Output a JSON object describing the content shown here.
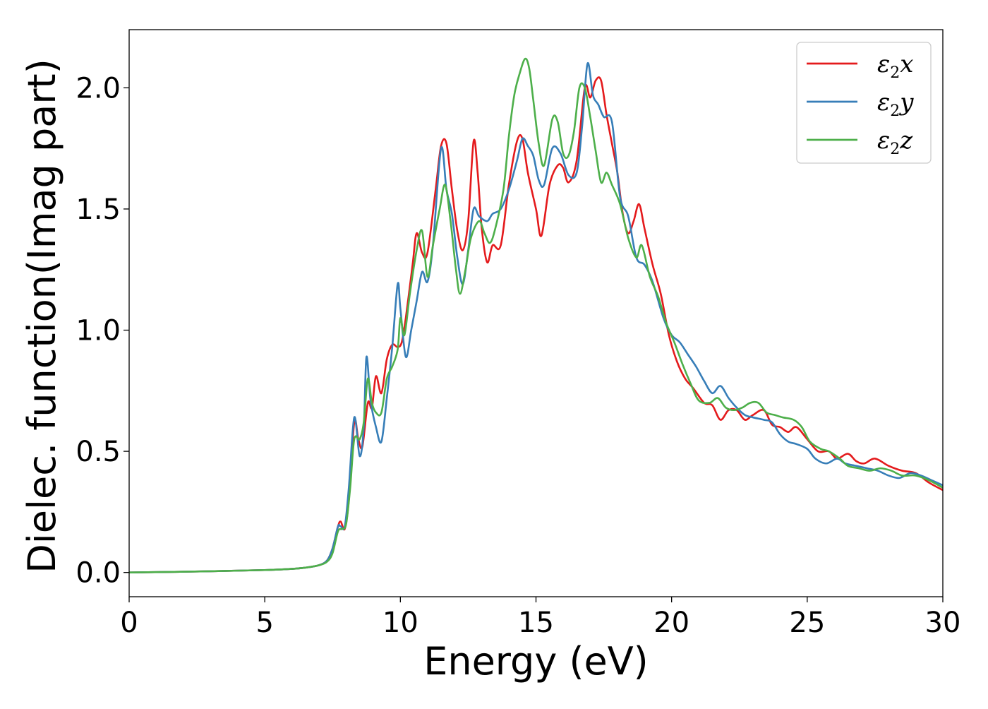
{
  "chart_data": {
    "type": "line",
    "xlabel": "Energy (eV)",
    "ylabel": "Dielec. function(Imag part)",
    "xlim": [
      0,
      30
    ],
    "ylim": [
      -0.1,
      2.24
    ],
    "xticks": [
      0,
      5,
      10,
      15,
      20,
      25,
      30
    ],
    "xtick_labels": [
      "0",
      "5",
      "10",
      "15",
      "20",
      "25",
      "30"
    ],
    "yticks": [
      0.0,
      0.5,
      1.0,
      1.5,
      2.0
    ],
    "ytick_labels": [
      "0.0",
      "0.5",
      "1.0",
      "1.5",
      "2.0"
    ],
    "grid": false,
    "legend_position": "top-right",
    "series": [
      {
        "name": "ε2x",
        "legend_symbol": "ε",
        "legend_sub": "2",
        "legend_var": "x",
        "color": "#e41a1c",
        "points": [
          [
            0,
            0.0
          ],
          [
            3,
            0.005
          ],
          [
            5,
            0.01
          ],
          [
            6,
            0.015
          ],
          [
            6.5,
            0.02
          ],
          [
            7,
            0.03
          ],
          [
            7.3,
            0.05
          ],
          [
            7.5,
            0.1
          ],
          [
            7.7,
            0.19
          ],
          [
            7.8,
            0.21
          ],
          [
            7.95,
            0.18
          ],
          [
            8.1,
            0.3
          ],
          [
            8.3,
            0.62
          ],
          [
            8.45,
            0.55
          ],
          [
            8.6,
            0.52
          ],
          [
            8.8,
            0.7
          ],
          [
            8.95,
            0.68
          ],
          [
            9.1,
            0.81
          ],
          [
            9.3,
            0.74
          ],
          [
            9.5,
            0.88
          ],
          [
            9.7,
            0.94
          ],
          [
            9.9,
            0.93
          ],
          [
            10.05,
            0.95
          ],
          [
            10.2,
            1.05
          ],
          [
            10.45,
            1.27
          ],
          [
            10.6,
            1.4
          ],
          [
            10.8,
            1.32
          ],
          [
            11.0,
            1.32
          ],
          [
            11.3,
            1.58
          ],
          [
            11.5,
            1.76
          ],
          [
            11.7,
            1.77
          ],
          [
            11.9,
            1.58
          ],
          [
            12.1,
            1.41
          ],
          [
            12.3,
            1.33
          ],
          [
            12.5,
            1.45
          ],
          [
            12.7,
            1.78
          ],
          [
            12.85,
            1.65
          ],
          [
            13.0,
            1.42
          ],
          [
            13.2,
            1.28
          ],
          [
            13.4,
            1.35
          ],
          [
            13.7,
            1.35
          ],
          [
            14.0,
            1.6
          ],
          [
            14.3,
            1.78
          ],
          [
            14.5,
            1.79
          ],
          [
            14.7,
            1.65
          ],
          [
            15.0,
            1.5
          ],
          [
            15.2,
            1.39
          ],
          [
            15.5,
            1.6
          ],
          [
            15.8,
            1.68
          ],
          [
            16.0,
            1.67
          ],
          [
            16.2,
            1.61
          ],
          [
            16.5,
            1.7
          ],
          [
            16.8,
            2.0
          ],
          [
            17.0,
            1.96
          ],
          [
            17.2,
            2.03
          ],
          [
            17.4,
            2.03
          ],
          [
            17.6,
            1.89
          ],
          [
            17.8,
            1.77
          ],
          [
            18.0,
            1.65
          ],
          [
            18.2,
            1.48
          ],
          [
            18.4,
            1.4
          ],
          [
            18.6,
            1.45
          ],
          [
            18.8,
            1.52
          ],
          [
            19.0,
            1.42
          ],
          [
            19.3,
            1.27
          ],
          [
            19.6,
            1.15
          ],
          [
            19.9,
            0.98
          ],
          [
            20.2,
            0.87
          ],
          [
            20.5,
            0.8
          ],
          [
            20.8,
            0.76
          ],
          [
            21.2,
            0.7
          ],
          [
            21.5,
            0.69
          ],
          [
            21.8,
            0.63
          ],
          [
            22.1,
            0.67
          ],
          [
            22.4,
            0.67
          ],
          [
            22.7,
            0.63
          ],
          [
            23.0,
            0.65
          ],
          [
            23.4,
            0.67
          ],
          [
            23.7,
            0.61
          ],
          [
            24.0,
            0.6
          ],
          [
            24.3,
            0.58
          ],
          [
            24.6,
            0.6
          ],
          [
            25.0,
            0.55
          ],
          [
            25.4,
            0.5
          ],
          [
            25.8,
            0.5
          ],
          [
            26.1,
            0.47
          ],
          [
            26.5,
            0.49
          ],
          [
            26.8,
            0.46
          ],
          [
            27.1,
            0.45
          ],
          [
            27.5,
            0.47
          ],
          [
            28.0,
            0.44
          ],
          [
            28.5,
            0.42
          ],
          [
            29.0,
            0.41
          ],
          [
            29.5,
            0.37
          ],
          [
            30.0,
            0.34
          ]
        ]
      },
      {
        "name": "ε2y",
        "legend_symbol": "ε",
        "legend_sub": "2",
        "legend_var": "y",
        "color": "#377eb8",
        "points": [
          [
            0,
            0.0
          ],
          [
            3,
            0.005
          ],
          [
            5,
            0.01
          ],
          [
            6,
            0.015
          ],
          [
            6.5,
            0.02
          ],
          [
            7,
            0.03
          ],
          [
            7.3,
            0.05
          ],
          [
            7.5,
            0.1
          ],
          [
            7.7,
            0.19
          ],
          [
            7.8,
            0.19
          ],
          [
            7.95,
            0.19
          ],
          [
            8.1,
            0.35
          ],
          [
            8.3,
            0.64
          ],
          [
            8.5,
            0.48
          ],
          [
            8.65,
            0.6
          ],
          [
            8.75,
            0.89
          ],
          [
            8.9,
            0.71
          ],
          [
            9.1,
            0.6
          ],
          [
            9.3,
            0.54
          ],
          [
            9.5,
            0.72
          ],
          [
            9.7,
            0.93
          ],
          [
            9.9,
            1.19
          ],
          [
            10.0,
            1.09
          ],
          [
            10.2,
            0.89
          ],
          [
            10.4,
            1.0
          ],
          [
            10.6,
            1.12
          ],
          [
            10.8,
            1.24
          ],
          [
            11.0,
            1.2
          ],
          [
            11.2,
            1.35
          ],
          [
            11.5,
            1.75
          ],
          [
            11.7,
            1.58
          ],
          [
            11.9,
            1.48
          ],
          [
            12.1,
            1.3
          ],
          [
            12.3,
            1.19
          ],
          [
            12.5,
            1.33
          ],
          [
            12.7,
            1.5
          ],
          [
            12.9,
            1.47
          ],
          [
            13.2,
            1.45
          ],
          [
            13.4,
            1.48
          ],
          [
            13.7,
            1.5
          ],
          [
            14.0,
            1.58
          ],
          [
            14.3,
            1.7
          ],
          [
            14.5,
            1.79
          ],
          [
            14.7,
            1.76
          ],
          [
            14.9,
            1.72
          ],
          [
            15.1,
            1.62
          ],
          [
            15.3,
            1.6
          ],
          [
            15.6,
            1.75
          ],
          [
            15.9,
            1.73
          ],
          [
            16.2,
            1.64
          ],
          [
            16.5,
            1.65
          ],
          [
            16.7,
            1.84
          ],
          [
            16.9,
            2.1
          ],
          [
            17.1,
            1.97
          ],
          [
            17.3,
            1.93
          ],
          [
            17.5,
            1.88
          ],
          [
            17.8,
            1.86
          ],
          [
            18.1,
            1.55
          ],
          [
            18.4,
            1.47
          ],
          [
            18.7,
            1.3
          ],
          [
            19.0,
            1.27
          ],
          [
            19.3,
            1.2
          ],
          [
            19.7,
            1.05
          ],
          [
            20.0,
            0.98
          ],
          [
            20.3,
            0.95
          ],
          [
            20.6,
            0.9
          ],
          [
            20.9,
            0.85
          ],
          [
            21.2,
            0.79
          ],
          [
            21.5,
            0.74
          ],
          [
            21.8,
            0.77
          ],
          [
            22.1,
            0.72
          ],
          [
            22.4,
            0.68
          ],
          [
            22.7,
            0.65
          ],
          [
            23.0,
            0.64
          ],
          [
            23.4,
            0.63
          ],
          [
            23.7,
            0.62
          ],
          [
            24.0,
            0.57
          ],
          [
            24.3,
            0.54
          ],
          [
            24.6,
            0.53
          ],
          [
            25.0,
            0.51
          ],
          [
            25.3,
            0.47
          ],
          [
            25.7,
            0.45
          ],
          [
            26.1,
            0.47
          ],
          [
            26.4,
            0.45
          ],
          [
            26.8,
            0.44
          ],
          [
            27.2,
            0.43
          ],
          [
            27.6,
            0.42
          ],
          [
            28.0,
            0.4
          ],
          [
            28.4,
            0.39
          ],
          [
            28.8,
            0.41
          ],
          [
            29.2,
            0.4
          ],
          [
            29.6,
            0.38
          ],
          [
            30.0,
            0.36
          ]
        ]
      },
      {
        "name": "ε2z",
        "legend_symbol": "ε",
        "legend_sub": "2",
        "legend_var": "z",
        "color": "#4daf4a",
        "points": [
          [
            0,
            0.0
          ],
          [
            3,
            0.005
          ],
          [
            5,
            0.01
          ],
          [
            6,
            0.015
          ],
          [
            6.5,
            0.02
          ],
          [
            7,
            0.03
          ],
          [
            7.3,
            0.045
          ],
          [
            7.5,
            0.08
          ],
          [
            7.7,
            0.17
          ],
          [
            7.85,
            0.18
          ],
          [
            8.0,
            0.2
          ],
          [
            8.15,
            0.35
          ],
          [
            8.3,
            0.55
          ],
          [
            8.5,
            0.55
          ],
          [
            8.65,
            0.62
          ],
          [
            8.8,
            0.8
          ],
          [
            8.95,
            0.7
          ],
          [
            9.1,
            0.66
          ],
          [
            9.3,
            0.66
          ],
          [
            9.5,
            0.8
          ],
          [
            9.7,
            0.85
          ],
          [
            9.9,
            0.92
          ],
          [
            10.0,
            1.05
          ],
          [
            10.15,
            0.98
          ],
          [
            10.35,
            1.15
          ],
          [
            10.6,
            1.33
          ],
          [
            10.8,
            1.41
          ],
          [
            11.0,
            1.22
          ],
          [
            11.2,
            1.35
          ],
          [
            11.45,
            1.5
          ],
          [
            11.65,
            1.6
          ],
          [
            11.85,
            1.45
          ],
          [
            12.05,
            1.25
          ],
          [
            12.2,
            1.15
          ],
          [
            12.4,
            1.25
          ],
          [
            12.6,
            1.38
          ],
          [
            12.9,
            1.45
          ],
          [
            13.1,
            1.4
          ],
          [
            13.3,
            1.36
          ],
          [
            13.5,
            1.42
          ],
          [
            13.8,
            1.58
          ],
          [
            14.0,
            1.8
          ],
          [
            14.2,
            1.97
          ],
          [
            14.4,
            2.06
          ],
          [
            14.6,
            2.12
          ],
          [
            14.75,
            2.08
          ],
          [
            14.9,
            1.95
          ],
          [
            15.1,
            1.77
          ],
          [
            15.3,
            1.68
          ],
          [
            15.6,
            1.87
          ],
          [
            15.8,
            1.86
          ],
          [
            16.0,
            1.73
          ],
          [
            16.2,
            1.72
          ],
          [
            16.4,
            1.82
          ],
          [
            16.6,
            2.0
          ],
          [
            16.8,
            2.0
          ],
          [
            17.0,
            1.88
          ],
          [
            17.2,
            1.74
          ],
          [
            17.4,
            1.61
          ],
          [
            17.6,
            1.65
          ],
          [
            17.8,
            1.6
          ],
          [
            18.1,
            1.52
          ],
          [
            18.4,
            1.38
          ],
          [
            18.7,
            1.3
          ],
          [
            18.9,
            1.35
          ],
          [
            19.2,
            1.22
          ],
          [
            19.5,
            1.14
          ],
          [
            19.8,
            1.03
          ],
          [
            20.1,
            0.95
          ],
          [
            20.4,
            0.86
          ],
          [
            20.7,
            0.78
          ],
          [
            21.0,
            0.71
          ],
          [
            21.4,
            0.7
          ],
          [
            21.7,
            0.72
          ],
          [
            22.0,
            0.68
          ],
          [
            22.3,
            0.67
          ],
          [
            22.6,
            0.68
          ],
          [
            22.9,
            0.7
          ],
          [
            23.2,
            0.7
          ],
          [
            23.5,
            0.66
          ],
          [
            23.8,
            0.65
          ],
          [
            24.1,
            0.64
          ],
          [
            24.5,
            0.63
          ],
          [
            24.8,
            0.6
          ],
          [
            25.1,
            0.54
          ],
          [
            25.5,
            0.51
          ],
          [
            25.8,
            0.5
          ],
          [
            26.2,
            0.47
          ],
          [
            26.5,
            0.44
          ],
          [
            26.9,
            0.43
          ],
          [
            27.3,
            0.42
          ],
          [
            27.7,
            0.43
          ],
          [
            28.1,
            0.42
          ],
          [
            28.5,
            0.4
          ],
          [
            29.0,
            0.4
          ],
          [
            29.5,
            0.38
          ],
          [
            30.0,
            0.35
          ]
        ]
      }
    ]
  }
}
